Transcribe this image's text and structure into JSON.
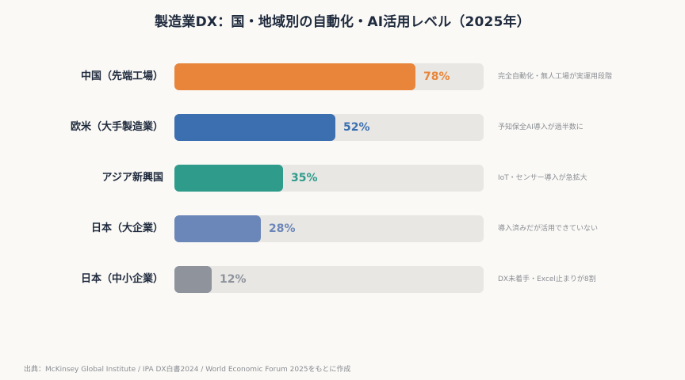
{
  "chart_data": {
    "type": "bar",
    "orientation": "horizontal",
    "title": "製造業DX：国・地域別の自動化・AI活用レベル（2025年）",
    "categories": [
      "中国（先端工場）",
      "欧米（大手製造業）",
      "アジア新興国",
      "日本（大企業）",
      "日本（中小企業）"
    ],
    "values": [
      78,
      52,
      35,
      28,
      12
    ],
    "value_labels": [
      "78%",
      "52%",
      "35%",
      "28%",
      "12%"
    ],
    "notes": [
      "完全自動化・無人工場が実運用段階",
      "予知保全AI導入が過半数に",
      "IoT・センサー導入が急拡大",
      "導入済みだが活用できていない",
      "DX未着手・Excel止まりが8割"
    ],
    "colors": [
      "#e8853a",
      "#3c6fb0",
      "#2e9b8b",
      "#6b86b8",
      "#8e939c"
    ],
    "track_color": "#e8e7e4",
    "xlim": [
      0,
      100
    ],
    "unit": "%"
  },
  "source": "出典：McKinsey Global Institute / IPA DX白書2024 / World Economic Forum 2025をもとに作成"
}
